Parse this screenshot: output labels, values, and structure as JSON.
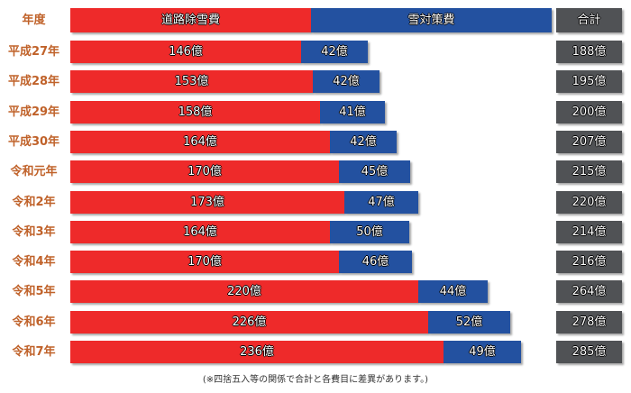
{
  "chart_data": {
    "type": "bar",
    "stacked": true,
    "orientation": "horizontal",
    "header": {
      "year": "年度",
      "series1": "道路除雪費",
      "series2": "雪対策費",
      "total": "合計"
    },
    "unit": "億",
    "categories": [
      "平成27年",
      "平成28年",
      "平成29年",
      "平成30年",
      "令和元年",
      "令和2年",
      "令和3年",
      "令和4年",
      "令和5年",
      "令和6年",
      "令和7年"
    ],
    "series": [
      {
        "name": "道路除雪費",
        "color": "#ee2a2a",
        "values": [
          146,
          153,
          158,
          164,
          170,
          173,
          164,
          170,
          220,
          226,
          236
        ]
      },
      {
        "name": "雪対策費",
        "color": "#2351a0",
        "values": [
          42,
          42,
          41,
          42,
          45,
          47,
          50,
          46,
          44,
          52,
          49
        ]
      }
    ],
    "totals": [
      188,
      195,
      200,
      207,
      215,
      220,
      214,
      216,
      264,
      278,
      285
    ],
    "note": "(※四捨五入等の関係で合計と各費目に差異があります。)"
  }
}
